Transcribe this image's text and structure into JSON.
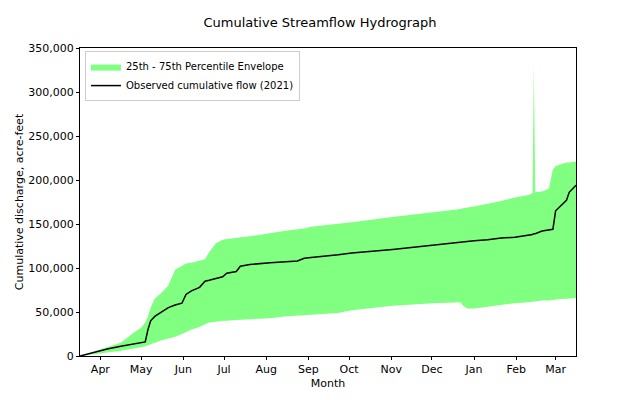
{
  "chart_data": {
    "type": "line",
    "title": "Cumulative Streamflow Hydrograph",
    "x_label": "Month",
    "y_label": "Cumulative discharge, acre-feet",
    "x": [
      0,
      10,
      15,
      20,
      30,
      40,
      45,
      48,
      50,
      52,
      55,
      60,
      65,
      70,
      75,
      78,
      82,
      88,
      92,
      95,
      100,
      105,
      108,
      115,
      118,
      125,
      140,
      150,
      160,
      165,
      170,
      190,
      200,
      230,
      260,
      280,
      282,
      285,
      290,
      300,
      310,
      320,
      330,
      333,
      334,
      335,
      340,
      345,
      348,
      350,
      355,
      358,
      360,
      365
    ],
    "series": [
      {
        "name": "25th - 75th Percentile Envelope",
        "type": "band",
        "color": "#80ff80",
        "lower": [
          0,
          2000,
          3000,
          4000,
          6000,
          8500,
          10000,
          11000,
          12000,
          13000,
          15000,
          18000,
          20000,
          22000,
          25000,
          27000,
          30000,
          33000,
          36000,
          38000,
          39000,
          40000,
          40000,
          41000,
          41000,
          42000,
          43000,
          45000,
          46000,
          46000,
          47000,
          49000,
          52000,
          57000,
          60000,
          61000,
          57000,
          54000,
          54000,
          56000,
          58000,
          60000,
          61000,
          62000,
          62000,
          62000,
          63000,
          63000,
          64000,
          64000,
          65000,
          65000,
          65000,
          66000
        ],
        "upper": [
          0,
          5000,
          8000,
          10000,
          15000,
          27000,
          32000,
          38000,
          45000,
          55000,
          65000,
          72000,
          80000,
          98000,
          103000,
          105000,
          106000,
          108000,
          110000,
          118000,
          128000,
          132000,
          133000,
          134000,
          135000,
          136000,
          140000,
          142000,
          144000,
          145000,
          147000,
          150000,
          152000,
          158000,
          163000,
          167000,
          168000,
          169000,
          170000,
          173000,
          176000,
          180000,
          183000,
          185000,
          330000,
          186000,
          187000,
          190000,
          212000,
          216000,
          219000,
          220000,
          220000,
          221000
        ]
      },
      {
        "name": "Observed cumulative flow (2021)",
        "type": "line",
        "color": "#000000",
        "values": [
          0,
          4000,
          6000,
          8000,
          11000,
          14000,
          15000,
          16000,
          30000,
          40000,
          45000,
          50000,
          55000,
          58000,
          60000,
          70000,
          74000,
          78000,
          85000,
          86000,
          88000,
          90000,
          94000,
          96000,
          102000,
          104000,
          106000,
          107000,
          108000,
          111000,
          112000,
          115000,
          117000,
          121000,
          126000,
          129000,
          130000,
          130000,
          131000,
          132000,
          134000,
          135000,
          137000,
          138000,
          139000,
          139000,
          142000,
          143000,
          144000,
          165000,
          173000,
          177000,
          186000,
          194000
        ]
      }
    ],
    "xlim": [
      0,
      365
    ],
    "xticks": [
      {
        "value": 15,
        "label": "Apr"
      },
      {
        "value": 45,
        "label": "May"
      },
      {
        "value": 76,
        "label": "Jun"
      },
      {
        "value": 106,
        "label": "Jul"
      },
      {
        "value": 137,
        "label": "Aug"
      },
      {
        "value": 168,
        "label": "Sep"
      },
      {
        "value": 198,
        "label": "Oct"
      },
      {
        "value": 229,
        "label": "Nov"
      },
      {
        "value": 259,
        "label": "Dec"
      },
      {
        "value": 290,
        "label": "Jan"
      },
      {
        "value": 321,
        "label": "Feb"
      },
      {
        "value": 350,
        "label": "Mar"
      }
    ],
    "ylim": [
      0,
      350000
    ],
    "yticks": [
      0,
      {
        "value": 50000,
        "label": "50,000"
      },
      {
        "value": 100000,
        "label": "100,000"
      },
      {
        "value": 150000,
        "label": "150,000"
      },
      {
        "value": 200000,
        "label": "200,000"
      },
      {
        "value": 250000,
        "label": "250,000"
      },
      {
        "value": 300000,
        "label": "300,000"
      },
      {
        "value": 350000,
        "label": "350,000"
      }
    ],
    "grid": false,
    "legend": "upper left"
  }
}
